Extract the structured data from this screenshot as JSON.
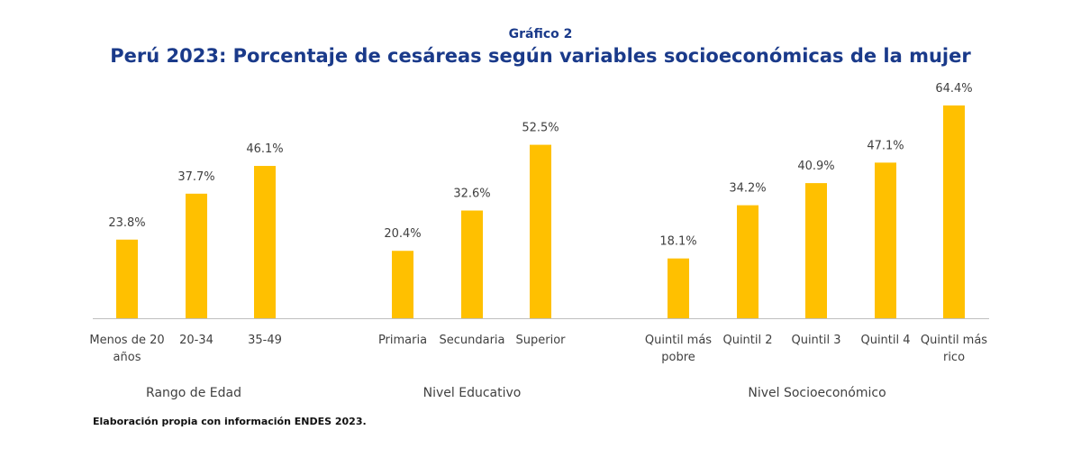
{
  "header": {
    "supertitle": "Gráfico 2",
    "title": "Perú 2023: Porcentaje de cesáreas según variables socioeconómicas de la mujer"
  },
  "footer": {
    "source": "Elaboración propia con información ENDES 2023."
  },
  "colors": {
    "bar": "#FFC000",
    "title": "#1A3A8A",
    "axis": "#BFBFBF",
    "text": "#404040"
  },
  "chart_data": {
    "type": "bar",
    "title": "Perú 2023: Porcentaje de cesáreas según variables socioeconómicas de la mujer",
    "ylim": [
      0,
      70
    ],
    "grid": false,
    "value_format": "percent",
    "groups": [
      {
        "name": "Rango de Edad",
        "categories": [
          "Menos de 20 años",
          "20-34",
          "35-49"
        ],
        "values": [
          23.8,
          37.7,
          46.1
        ],
        "labels": [
          "23.8%",
          "37.7%",
          "46.1%"
        ]
      },
      {
        "name": "Nivel Educativo",
        "categories": [
          "Primaria",
          "Secundaria",
          "Superior"
        ],
        "values": [
          20.4,
          32.6,
          52.5
        ],
        "labels": [
          "20.4%",
          "32.6%",
          "52.5%"
        ]
      },
      {
        "name": "Nivel Socioeconómico",
        "categories": [
          "Quintil más pobre",
          "Quintil 2",
          "Quintil 3",
          "Quintil 4",
          "Quintil más rico"
        ],
        "values": [
          18.1,
          34.2,
          40.9,
          47.1,
          64.4
        ],
        "labels": [
          "18.1%",
          "34.2%",
          "40.9%",
          "47.1%",
          "64.4%"
        ]
      }
    ]
  }
}
